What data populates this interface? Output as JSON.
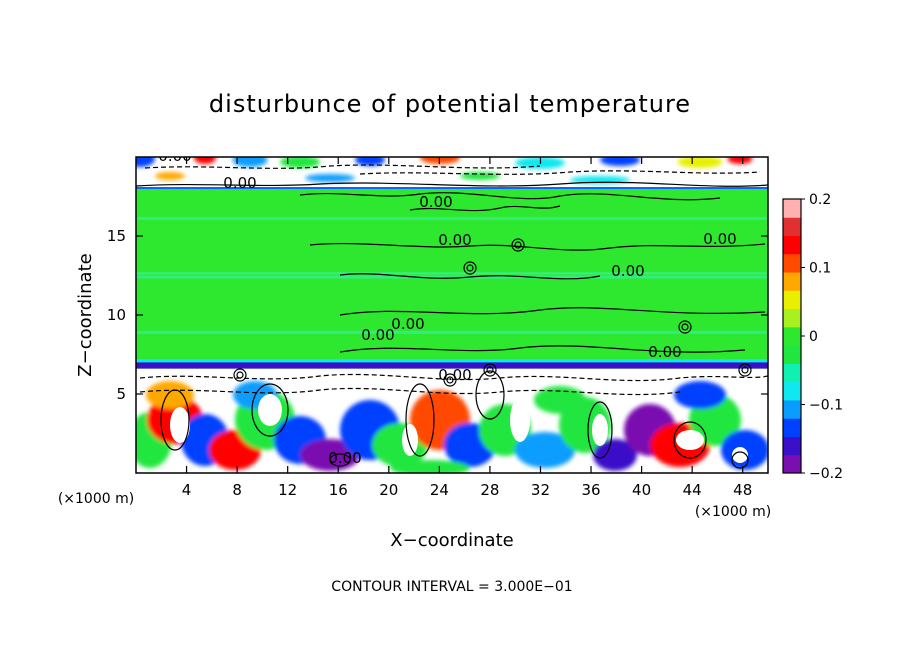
{
  "chart_data": {
    "type": "heatmap",
    "title": "disturbunce of potential temperature",
    "xlabel": "X−coordinate",
    "ylabel": "Z−coordinate",
    "x_unit_left": "(×1000 m)",
    "x_unit_right": "(×1000 m)",
    "footer": "CONTOUR INTERVAL = 3.000E−01",
    "xlim": [
      0,
      50
    ],
    "ylim": [
      0,
      20
    ],
    "x_ticks": [
      "4",
      "8",
      "12",
      "16",
      "20",
      "24",
      "28",
      "32",
      "36",
      "40",
      "44",
      "48"
    ],
    "y_ticks": [
      "5",
      "10",
      "15"
    ],
    "colorbar": {
      "range": [
        -0.2,
        0.2
      ],
      "tick_labels": [
        "0.2",
        "0.1",
        "0",
        "−0.1",
        "−0.2"
      ],
      "colors": [
        "#7a0fb0",
        "#3a10c8",
        "#0040ff",
        "#0a9dff",
        "#10e8f0",
        "#10f0b0",
        "#22e640",
        "#2ee830",
        "#a8f020",
        "#e8f000",
        "#ffa800",
        "#ff4a00",
        "#ff0000",
        "#e03030",
        "#ffb0b0"
      ]
    },
    "contour_labels": [
      "0.00",
      "0.00",
      "0.00",
      "0.00",
      "0.00",
      "0.00",
      "0.00",
      "0.00",
      "0.00",
      "0.00",
      "0.00"
    ],
    "fields": {
      "background": "#2ee830",
      "stable_band_z": [
        6.6,
        7.2
      ],
      "upper_layer_z": [
        18.0,
        20.0
      ],
      "lower_layer_z": [
        0,
        6.6
      ]
    }
  }
}
